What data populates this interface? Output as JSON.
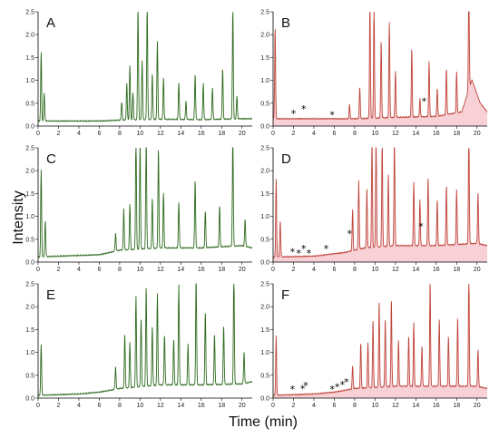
{
  "figure": {
    "ylabel": "Intensity",
    "xlabel": "Time (min)"
  },
  "colors": {
    "green": "#2f6b1f",
    "red": "#c0463c",
    "red_fill": "#f6c9cf"
  },
  "chart_data": [
    {
      "panel": "A",
      "type": "line",
      "color": "green",
      "shaded": false,
      "xlim": [
        0,
        21
      ],
      "ylim": [
        0,
        2.5
      ],
      "xticks": [
        0,
        2,
        4,
        6,
        8,
        10,
        12,
        14,
        16,
        18,
        20
      ],
      "yticks": [
        0.0,
        0.5,
        1.0,
        1.5,
        2.0,
        2.5
      ],
      "baseline": [
        [
          0,
          0.1
        ],
        [
          6,
          0.1
        ],
        [
          8,
          0.12
        ],
        [
          12,
          0.14
        ],
        [
          16,
          0.13
        ],
        [
          20,
          0.15
        ],
        [
          21,
          0.15
        ]
      ],
      "peaks": [
        [
          0.3,
          1.5
        ],
        [
          0.6,
          0.6
        ],
        [
          8.2,
          0.4
        ],
        [
          8.7,
          0.8
        ],
        [
          9.0,
          1.2
        ],
        [
          9.3,
          0.6
        ],
        [
          9.8,
          2.5
        ],
        [
          10.2,
          1.3
        ],
        [
          10.7,
          2.5
        ],
        [
          11.2,
          1.0
        ],
        [
          11.7,
          1.7
        ],
        [
          12.3,
          0.9
        ],
        [
          13.8,
          0.8
        ],
        [
          14.5,
          0.4
        ],
        [
          15.4,
          1.0
        ],
        [
          16.2,
          0.8
        ],
        [
          17.1,
          0.7
        ],
        [
          18.1,
          1.1
        ],
        [
          19.1,
          2.4
        ],
        [
          19.5,
          0.5
        ]
      ],
      "stars": []
    },
    {
      "panel": "B",
      "type": "line",
      "color": "red",
      "shaded": true,
      "xlim": [
        0,
        21
      ],
      "ylim": [
        0,
        2.5
      ],
      "xticks": [
        0,
        2,
        4,
        6,
        8,
        10,
        12,
        14,
        16,
        18,
        20
      ],
      "yticks": [
        0.0,
        0.5,
        1.0,
        1.5,
        2.0,
        2.5
      ],
      "baseline": [
        [
          0,
          0.15
        ],
        [
          6,
          0.15
        ],
        [
          8,
          0.15
        ],
        [
          12,
          0.18
        ],
        [
          16,
          0.2
        ],
        [
          18.5,
          0.3
        ],
        [
          19.5,
          1.0
        ],
        [
          20.3,
          0.5
        ],
        [
          21,
          0.3
        ]
      ],
      "peaks": [
        [
          0.2,
          2.0
        ],
        [
          7.5,
          0.3
        ],
        [
          8.5,
          0.7
        ],
        [
          9.5,
          2.5
        ],
        [
          9.9,
          2.5
        ],
        [
          10.6,
          1.7
        ],
        [
          11.4,
          2.1
        ],
        [
          12.0,
          1.0
        ],
        [
          13.6,
          1.5
        ],
        [
          14.4,
          0.4
        ],
        [
          15.3,
          1.2
        ],
        [
          16.1,
          0.6
        ],
        [
          17.0,
          1.0
        ],
        [
          18.0,
          0.9
        ],
        [
          19.2,
          2.4
        ]
      ],
      "stars": [
        [
          2.0,
          0.2
        ],
        [
          3.0,
          0.3
        ],
        [
          5.8,
          0.17
        ],
        [
          14.8,
          0.47
        ]
      ]
    },
    {
      "panel": "C",
      "type": "line",
      "color": "green",
      "shaded": false,
      "xlim": [
        0,
        21
      ],
      "ylim": [
        0,
        2.5
      ],
      "xticks": [
        0,
        2,
        4,
        6,
        8,
        10,
        12,
        14,
        16,
        18,
        20
      ],
      "yticks": [
        0.0,
        0.5,
        1.0,
        1.5,
        2.0,
        2.5
      ],
      "baseline": [
        [
          0,
          0.1
        ],
        [
          2,
          0.12
        ],
        [
          6,
          0.15
        ],
        [
          8,
          0.25
        ],
        [
          12,
          0.3
        ],
        [
          16,
          0.3
        ],
        [
          20,
          0.35
        ],
        [
          21,
          0.3
        ]
      ],
      "peaks": [
        [
          0.3,
          1.9
        ],
        [
          0.7,
          0.8
        ],
        [
          7.6,
          0.4
        ],
        [
          8.4,
          0.9
        ],
        [
          9.0,
          1.0
        ],
        [
          9.6,
          2.5
        ],
        [
          10.0,
          2.4
        ],
        [
          10.6,
          2.5
        ],
        [
          11.2,
          1.1
        ],
        [
          11.8,
          2.2
        ],
        [
          12.3,
          1.2
        ],
        [
          13.8,
          1.0
        ],
        [
          15.4,
          1.5
        ],
        [
          16.4,
          0.8
        ],
        [
          17.8,
          0.9
        ],
        [
          19.1,
          2.4
        ],
        [
          20.3,
          0.6
        ]
      ],
      "stars": []
    },
    {
      "panel": "D",
      "type": "line",
      "color": "red",
      "shaded": true,
      "xlim": [
        0,
        21
      ],
      "ylim": [
        0,
        2.5
      ],
      "xticks": [
        0,
        2,
        4,
        6,
        8,
        10,
        12,
        14,
        16,
        18,
        20
      ],
      "yticks": [
        0.0,
        0.5,
        1.0,
        1.5,
        2.0,
        2.5
      ],
      "baseline": [
        [
          0,
          0.1
        ],
        [
          4,
          0.12
        ],
        [
          7,
          0.2
        ],
        [
          9,
          0.3
        ],
        [
          12,
          0.35
        ],
        [
          16,
          0.35
        ],
        [
          20,
          0.4
        ],
        [
          21,
          0.35
        ]
      ],
      "peaks": [
        [
          0.3,
          1.7
        ],
        [
          0.7,
          0.8
        ],
        [
          7.8,
          0.9
        ],
        [
          8.4,
          1.5
        ],
        [
          9.2,
          1.3
        ],
        [
          9.7,
          2.5
        ],
        [
          10.1,
          2.5
        ],
        [
          10.7,
          2.3
        ],
        [
          11.3,
          1.6
        ],
        [
          11.9,
          2.4
        ],
        [
          13.8,
          1.4
        ],
        [
          14.4,
          1.0
        ],
        [
          15.2,
          1.5
        ],
        [
          16.1,
          1.0
        ],
        [
          17.0,
          1.3
        ],
        [
          18.0,
          1.2
        ],
        [
          19.2,
          2.5
        ],
        [
          20.1,
          1.1
        ]
      ],
      "stars": [
        [
          1.9,
          0.15
        ],
        [
          2.5,
          0.12
        ],
        [
          3.0,
          0.22
        ],
        [
          3.5,
          0.12
        ],
        [
          5.2,
          0.22
        ],
        [
          7.5,
          0.55
        ],
        [
          14.5,
          0.7
        ]
      ]
    },
    {
      "panel": "E",
      "type": "line",
      "color": "green",
      "shaded": false,
      "xlim": [
        0,
        21
      ],
      "ylim": [
        0,
        2.5
      ],
      "xticks": [
        0,
        2,
        4,
        6,
        8,
        10,
        12,
        14,
        16,
        18,
        20
      ],
      "yticks": [
        0.0,
        0.5,
        1.0,
        1.5,
        2.0,
        2.5
      ],
      "baseline": [
        [
          0,
          0.05
        ],
        [
          4,
          0.08
        ],
        [
          6,
          0.12
        ],
        [
          8,
          0.2
        ],
        [
          12,
          0.28
        ],
        [
          16,
          0.28
        ],
        [
          20,
          0.3
        ],
        [
          21,
          0.35
        ]
      ],
      "peaks": [
        [
          0.3,
          1.1
        ],
        [
          7.6,
          0.5
        ],
        [
          8.5,
          1.2
        ],
        [
          9.0,
          1.0
        ],
        [
          9.6,
          2.0
        ],
        [
          10.1,
          1.5
        ],
        [
          10.6,
          2.2
        ],
        [
          11.2,
          1.3
        ],
        [
          11.7,
          2.0
        ],
        [
          12.4,
          1.1
        ],
        [
          13.3,
          1.0
        ],
        [
          13.8,
          2.2
        ],
        [
          14.7,
          0.9
        ],
        [
          15.5,
          2.5
        ],
        [
          16.4,
          1.6
        ],
        [
          17.3,
          1.1
        ],
        [
          18.2,
          1.3
        ],
        [
          19.2,
          2.5
        ],
        [
          20.2,
          0.7
        ]
      ],
      "stars": []
    },
    {
      "panel": "F",
      "type": "line",
      "color": "red",
      "shaded": true,
      "xlim": [
        0,
        21
      ],
      "ylim": [
        0,
        2.5
      ],
      "xticks": [
        0,
        2,
        4,
        6,
        8,
        10,
        12,
        14,
        16,
        18,
        20
      ],
      "yticks": [
        0.0,
        0.5,
        1.0,
        1.5,
        2.0,
        2.5
      ],
      "baseline": [
        [
          0,
          0.05
        ],
        [
          4,
          0.08
        ],
        [
          6,
          0.12
        ],
        [
          8,
          0.2
        ],
        [
          12,
          0.25
        ],
        [
          16,
          0.25
        ],
        [
          20,
          0.25
        ],
        [
          21,
          0.2
        ]
      ],
      "peaks": [
        [
          0.3,
          1.3
        ],
        [
          7.8,
          0.5
        ],
        [
          8.6,
          1.0
        ],
        [
          9.3,
          1.0
        ],
        [
          9.8,
          1.5
        ],
        [
          10.4,
          1.9
        ],
        [
          11.0,
          1.5
        ],
        [
          11.6,
          1.9
        ],
        [
          12.3,
          1.0
        ],
        [
          13.3,
          1.1
        ],
        [
          13.8,
          1.4
        ],
        [
          14.6,
          0.9
        ],
        [
          15.4,
          2.3
        ],
        [
          16.3,
          1.5
        ],
        [
          17.2,
          1.1
        ],
        [
          18.1,
          1.5
        ],
        [
          19.2,
          2.5
        ],
        [
          20.1,
          0.8
        ]
      ],
      "stars": [
        [
          1.9,
          0.12
        ],
        [
          2.9,
          0.13
        ],
        [
          3.2,
          0.2
        ],
        [
          5.8,
          0.12
        ],
        [
          6.3,
          0.17
        ],
        [
          6.8,
          0.22
        ],
        [
          7.2,
          0.28
        ]
      ]
    }
  ]
}
